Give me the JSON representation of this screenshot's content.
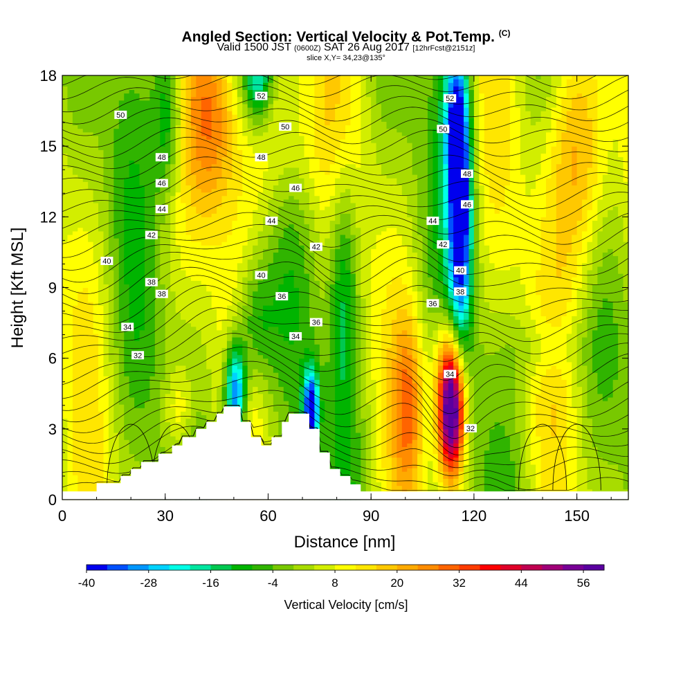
{
  "header": {
    "title": "Angled Section: Vertical Velocity & Pot.Temp.",
    "title_unit": "(C)",
    "valid_prefix": "Valid 1500 JST",
    "valid_utc": "(0600Z)",
    "valid_date": "SAT 26 Aug 2017",
    "forecast": "[12hrFcst@2151z]",
    "slice": "slice X,Y= 34,23@135°"
  },
  "chart_data": {
    "type": "heatmap",
    "xlabel": "Distance [nm]",
    "ylabel": "Height [Kft MSL]",
    "xlim": [
      0,
      165
    ],
    "ylim": [
      0,
      18
    ],
    "x_ticks": [
      "0",
      "30",
      "60",
      "90",
      "120",
      "150"
    ],
    "y_ticks": [
      "0",
      "3",
      "6",
      "9",
      "12",
      "15",
      "18"
    ],
    "colorbar": {
      "label": "Vertical Velocity [cm/s]",
      "min": -40,
      "max": 60,
      "step": 4,
      "tick_labels": [
        "-40",
        "-28",
        "-16",
        "-4",
        "8",
        "20",
        "32",
        "44",
        "56"
      ],
      "colors": [
        "#0000ee",
        "#0050ff",
        "#0096ff",
        "#00d2ff",
        "#00ffe6",
        "#00e6a0",
        "#00c850",
        "#00b400",
        "#30b400",
        "#78c800",
        "#a8dc00",
        "#d2ee00",
        "#ffff00",
        "#ffe600",
        "#ffc800",
        "#ffaa00",
        "#ff8c00",
        "#ff6400",
        "#ff3c00",
        "#ff0000",
        "#e00028",
        "#c00050",
        "#a00078",
        "#780096",
        "#5a00a0"
      ]
    },
    "contour_field": "Potential Temperature (C)",
    "contour_labels": [
      "32",
      "34",
      "36",
      "38",
      "40",
      "42",
      "44",
      "46",
      "48",
      "50",
      "52"
    ],
    "terrain_profile": [
      [
        0,
        0.35
      ],
      [
        10,
        0.35
      ],
      [
        10,
        0.7
      ],
      [
        17,
        0.7
      ],
      [
        17,
        1.0
      ],
      [
        20,
        1.0
      ],
      [
        20,
        1.3
      ],
      [
        23,
        1.3
      ],
      [
        23,
        1.6
      ],
      [
        28,
        1.6
      ],
      [
        28,
        1.95
      ],
      [
        32,
        1.95
      ],
      [
        32,
        2.3
      ],
      [
        35,
        2.3
      ],
      [
        35,
        2.65
      ],
      [
        39,
        2.65
      ],
      [
        39,
        3.0
      ],
      [
        42,
        3.0
      ],
      [
        42,
        3.3
      ],
      [
        45,
        3.3
      ],
      [
        45,
        3.65
      ],
      [
        47,
        3.65
      ],
      [
        47,
        3.95
      ],
      [
        52,
        3.95
      ],
      [
        52,
        3.3
      ],
      [
        55,
        3.3
      ],
      [
        55,
        2.65
      ],
      [
        58,
        2.65
      ],
      [
        58,
        2.3
      ],
      [
        61,
        2.3
      ],
      [
        61,
        2.65
      ],
      [
        64,
        2.65
      ],
      [
        64,
        3.3
      ],
      [
        66,
        3.3
      ],
      [
        66,
        3.65
      ],
      [
        72,
        3.65
      ],
      [
        72,
        3.0
      ],
      [
        75,
        3.0
      ],
      [
        75,
        2.0
      ],
      [
        78,
        2.0
      ],
      [
        78,
        1.3
      ],
      [
        81,
        1.3
      ],
      [
        81,
        1.0
      ],
      [
        84,
        1.0
      ],
      [
        84,
        0.65
      ],
      [
        87,
        0.65
      ],
      [
        87,
        0.35
      ],
      [
        165,
        0.35
      ]
    ],
    "velocity_features": [
      {
        "x": 113.5,
        "y": 3.4,
        "value": 58
      },
      {
        "x": 113.5,
        "y": 5.0,
        "value": 40
      },
      {
        "x": 101,
        "y": 4.0,
        "value": 22
      },
      {
        "x": 116,
        "y": 13.0,
        "value": -40
      },
      {
        "x": 115,
        "y": 16.0,
        "value": -38
      },
      {
        "x": 50.5,
        "y": 4.6,
        "value": -40
      },
      {
        "x": 72.5,
        "y": 3.8,
        "value": -40
      },
      {
        "x": 31,
        "y": 16.5,
        "value": -20
      },
      {
        "x": 57,
        "y": 18.0,
        "value": -30
      },
      {
        "x": 44,
        "y": 16.5,
        "value": 24
      },
      {
        "x": 64,
        "y": 16.0,
        "value": 16
      },
      {
        "x": 152,
        "y": 14.5,
        "value": 26
      },
      {
        "x": 34,
        "y": 3.8,
        "value": 14
      }
    ]
  }
}
